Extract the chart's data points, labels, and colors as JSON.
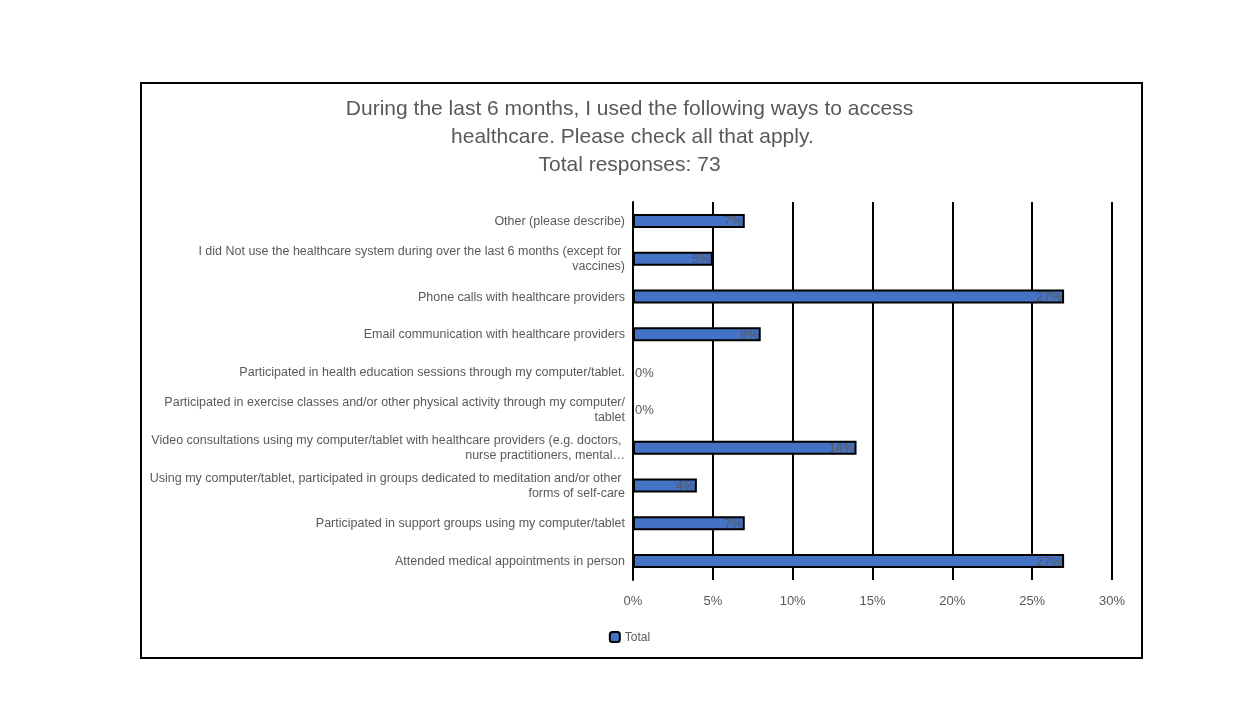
{
  "chart_data": {
    "type": "bar",
    "orientation": "horizontal",
    "title": "During the last 6 months, I used the following ways to access healthcare. Please check all that apply.",
    "subtitle": "Total responses: 73",
    "categories": [
      "Other (please describe)",
      "I did Not use the healthcare system during over the last 6 months (except for vaccines)",
      "Phone calls with healthcare providers",
      "Email communication with healthcare providers",
      "Participated in health education sessions through my computer/tablet.",
      "Participated in exercise classes and/or other physical activity through my computer/tablet",
      "Video consultations using my computer/tablet with healthcare providers (e.g. doctors, nurse practitioners, mental…",
      "Using my computer/tablet, participated in groups dedicated to meditation and/or other forms of self-care",
      "Participated in support groups using my computer/tablet",
      "Attended medical appointments in person"
    ],
    "series": [
      {
        "name": "Total",
        "color": "#4472c4",
        "values": [
          7,
          5,
          27,
          8,
          0,
          0,
          14,
          4,
          7,
          27
        ],
        "value_labels": [
          "7%",
          "5%",
          "27%",
          "8%",
          "0%",
          "0%",
          "14%",
          "4%",
          "7%",
          "27%"
        ]
      }
    ],
    "xlim": [
      0,
      30
    ],
    "xticks": [
      {
        "value": 0,
        "label": "0%"
      },
      {
        "value": 5,
        "label": "5%"
      },
      {
        "value": 10,
        "label": "10%"
      },
      {
        "value": 15,
        "label": "15%"
      },
      {
        "value": 20,
        "label": "20%"
      },
      {
        "value": 25,
        "label": "25%"
      },
      {
        "value": 30,
        "label": "30%"
      }
    ],
    "grid": "x",
    "legend": "bottom"
  }
}
